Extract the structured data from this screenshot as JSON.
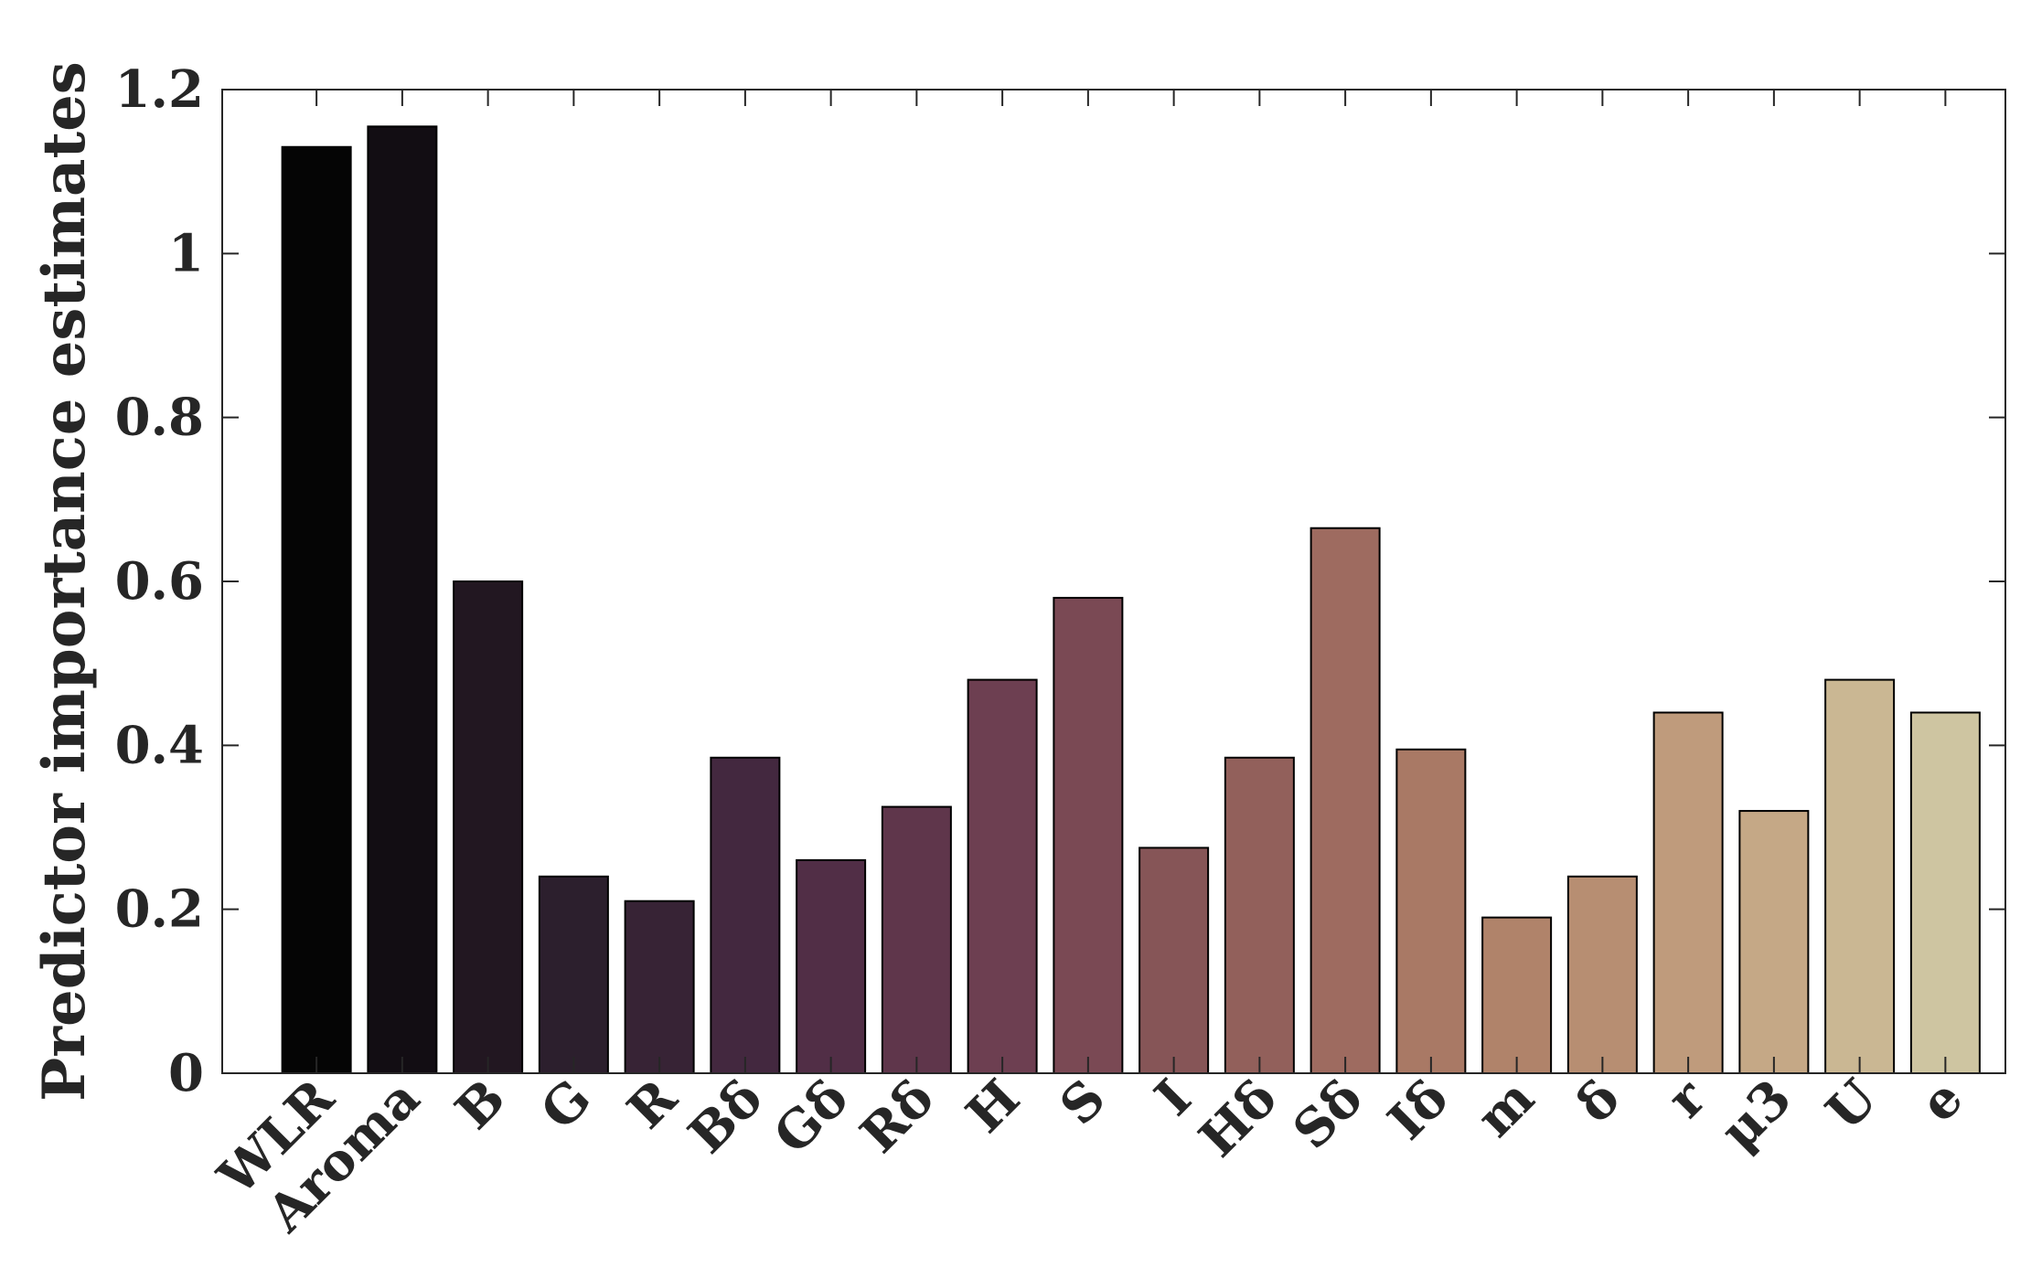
{
  "chart_data": {
    "type": "bar",
    "title": "",
    "xlabel": "",
    "ylabel": "Predictor importance estimates",
    "ylim": [
      0,
      1.2
    ],
    "yticks": [
      0,
      0.2,
      0.4,
      0.6,
      0.8,
      1,
      1.2
    ],
    "ytick_labels": [
      "0",
      "0.2",
      "0.4",
      "0.6",
      "0.8",
      "1",
      "1.2"
    ],
    "grid": false,
    "categories": [
      "WLR",
      "Aroma",
      "B",
      "G",
      "R",
      "Bδ",
      "Gδ",
      "Rδ",
      "H",
      "S",
      "I",
      "Hδ",
      "Sδ",
      "Iδ",
      "m",
      "δ",
      "r",
      "μ3",
      "U",
      "e"
    ],
    "values": [
      1.13,
      1.155,
      0.6,
      0.24,
      0.21,
      0.385,
      0.26,
      0.325,
      0.48,
      0.58,
      0.275,
      0.385,
      0.665,
      0.395,
      0.19,
      0.24,
      0.44,
      0.32,
      0.48,
      0.44
    ],
    "bar_colors": [
      "#050505",
      "#120d13",
      "#221721",
      "#2c1f2d",
      "#372335",
      "#43283f",
      "#512e46",
      "#5f364b",
      "#6d3f51",
      "#7a4954",
      "#865557",
      "#92605b",
      "#9e6b60",
      "#a97965",
      "#b0836a",
      "#b78e72",
      "#bf9b7c",
      "#c5a886",
      "#cab793",
      "#cec5a1"
    ]
  }
}
